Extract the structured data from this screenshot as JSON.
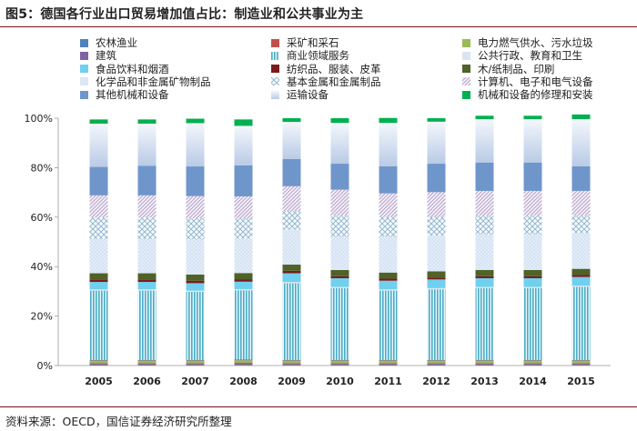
{
  "title": "图5：德国各行业出口贸易增加值占比：制造业和公共事业为主",
  "source": "资料来源：OECD，国信证券经济研究所整理",
  "chart_data": {
    "type": "bar",
    "stacked": true,
    "title": "图5：德国各行业出口贸易增加值占比：制造业和公共事业为主",
    "xlabel": "",
    "ylabel": "",
    "ylim": [
      0,
      100
    ],
    "y_ticks": [
      "0%",
      "20%",
      "40%",
      "60%",
      "80%",
      "100%"
    ],
    "categories": [
      "2005",
      "2006",
      "2007",
      "2008",
      "2009",
      "2010",
      "2011",
      "2012",
      "2013",
      "2014",
      "2015"
    ],
    "series": [
      {
        "name": "农林渔业",
        "color": "#4f81bd",
        "pattern": "solid",
        "values": [
          0.5,
          0.5,
          0.5,
          0.5,
          0.5,
          0.5,
          0.5,
          0.5,
          0.5,
          0.5,
          0.5
        ]
      },
      {
        "name": "采矿和采石",
        "color": "#c0504d",
        "pattern": "solid",
        "values": [
          0.5,
          0.5,
          0.5,
          0.6,
          0.5,
          0.5,
          0.5,
          0.5,
          0.5,
          0.5,
          0.5
        ]
      },
      {
        "name": "电力燃气供水、污水垃圾",
        "color": "#9bbb59",
        "pattern": "solid",
        "values": [
          1.0,
          1.0,
          1.0,
          1.0,
          1.0,
          1.0,
          1.0,
          1.0,
          1.0,
          1.0,
          1.0
        ]
      },
      {
        "name": "建筑",
        "color": "#8064a2",
        "pattern": "solid",
        "values": [
          0.3,
          0.3,
          0.3,
          0.3,
          0.3,
          0.3,
          0.3,
          0.3,
          0.3,
          0.3,
          0.3
        ]
      },
      {
        "name": "商业领域服务",
        "color": "#4bacc6",
        "pattern": "vlines",
        "values": [
          28,
          28,
          27.5,
          28,
          31,
          29,
          28,
          28.5,
          29,
          29,
          29.5
        ]
      },
      {
        "name": "公共行政、教育和卫生",
        "color": "#dbe5f1",
        "pattern": "solid",
        "values": [
          0.5,
          0.5,
          0.5,
          0.5,
          0.5,
          0.5,
          0.5,
          0.5,
          0.5,
          0.5,
          0.5
        ]
      },
      {
        "name": "食品饮料和烟酒",
        "color": "#70d0f0",
        "pattern": "solid",
        "values": [
          3.0,
          3.0,
          3.0,
          3.0,
          3.5,
          3.5,
          3.5,
          3.5,
          3.5,
          3.5,
          3.5
        ]
      },
      {
        "name": "纺织品、服装、皮革",
        "color": "#7b1c1c",
        "pattern": "solid",
        "values": [
          1.0,
          1.0,
          1.0,
          1.0,
          1.0,
          0.8,
          0.8,
          0.8,
          0.8,
          0.8,
          0.8
        ]
      },
      {
        "name": "木/纸制品、印刷",
        "color": "#4f6228",
        "pattern": "solid",
        "values": [
          2.5,
          2.5,
          2.5,
          2.5,
          2.5,
          2.5,
          2.5,
          2.5,
          2.5,
          2.5,
          2.5
        ]
      },
      {
        "name": "化学品和非金属矿物制品",
        "color": "#c6d9f1",
        "pattern": "dots",
        "values": [
          14,
          14,
          14.2,
          14,
          14.2,
          13.5,
          14.5,
          14.5,
          14.5,
          14.5,
          14.5
        ]
      },
      {
        "name": "基本金属和金属制品",
        "color": "#8eb4cc",
        "pattern": "cross",
        "values": [
          8.5,
          8.5,
          8.5,
          8,
          7.5,
          8.5,
          8,
          7.5,
          7.5,
          7.5,
          7
        ]
      },
      {
        "name": "计算机、电子和电气设备",
        "color": "#b2a1c7",
        "pattern": "diag",
        "values": [
          9,
          9,
          9,
          9,
          10,
          10.5,
          9.5,
          10,
          10,
          10,
          10
        ]
      },
      {
        "name": "其他机械和设备",
        "color": "#6f96cb",
        "pattern": "solid",
        "values": [
          11.5,
          12,
          12,
          12.5,
          11,
          10.5,
          11,
          11.5,
          11.5,
          11.5,
          10
        ]
      },
      {
        "name": "运输设备",
        "color": "#dce6f2",
        "pattern": "gradient",
        "values": [
          17.5,
          17,
          17.5,
          16,
          15,
          16.5,
          17.5,
          17,
          17.5,
          17.5,
          19
        ]
      },
      {
        "name": "机械和设备的修理和安装",
        "color": "#00b050",
        "pattern": "solid",
        "values": [
          1.7,
          1.7,
          1.8,
          2.6,
          1.5,
          1.9,
          2.0,
          1.4,
          1.4,
          1.4,
          1.9
        ]
      }
    ]
  }
}
